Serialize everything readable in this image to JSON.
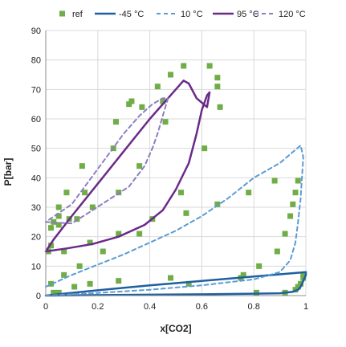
{
  "chart_data": {
    "type": "scatter",
    "xlabel": "x[CO2]",
    "ylabel": "P[bar]",
    "xlim": [
      0,
      1
    ],
    "ylim": [
      0,
      90
    ],
    "x_ticks": [
      "0",
      "0.2",
      "0.4",
      "0.6",
      "0.8",
      "1"
    ],
    "y_ticks": [
      "0",
      "10",
      "20",
      "30",
      "40",
      "50",
      "60",
      "70",
      "80",
      "90"
    ],
    "grid": "horizontal and vertical",
    "legend_position": "top",
    "series": [
      {
        "name": "ref",
        "kind": "markers",
        "color": "#70ad47",
        "points": [
          [
            0.01,
            15
          ],
          [
            0.02,
            17
          ],
          [
            0.02,
            23
          ],
          [
            0.03,
            25
          ],
          [
            0.05,
            27
          ],
          [
            0.05,
            24
          ],
          [
            0.05,
            30
          ],
          [
            0.07,
            15
          ],
          [
            0.08,
            35
          ],
          [
            0.09,
            26
          ],
          [
            0.12,
            26
          ],
          [
            0.14,
            44
          ],
          [
            0.15,
            35
          ],
          [
            0.18,
            30
          ],
          [
            0.26,
            50
          ],
          [
            0.27,
            59
          ],
          [
            0.32,
            65
          ],
          [
            0.33,
            66
          ],
          [
            0.37,
            64
          ],
          [
            0.43,
            71
          ],
          [
            0.45,
            66
          ],
          [
            0.46,
            59
          ],
          [
            0.48,
            75
          ],
          [
            0.53,
            78
          ],
          [
            0.63,
            78
          ],
          [
            0.66,
            74
          ],
          [
            0.66,
            71
          ],
          [
            0.67,
            64
          ],
          [
            0.61,
            50
          ],
          [
            0.36,
            44
          ],
          [
            0.52,
            35
          ],
          [
            0.54,
            28
          ],
          [
            0.41,
            26
          ],
          [
            0.36,
            21
          ],
          [
            0.28,
            21
          ],
          [
            0.28,
            35
          ],
          [
            0.17,
            18
          ],
          [
            0.22,
            15
          ],
          [
            0.66,
            31
          ],
          [
            0.78,
            35
          ],
          [
            0.88,
            39
          ],
          [
            0.97,
            39
          ],
          [
            0.96,
            35
          ],
          [
            0.95,
            31
          ],
          [
            0.94,
            27
          ],
          [
            0.92,
            21
          ],
          [
            0.89,
            15
          ],
          [
            0.82,
            10
          ],
          [
            0.76,
            7
          ],
          [
            0.75,
            6
          ],
          [
            0.99,
            7
          ],
          [
            0.99,
            6
          ],
          [
            0.98,
            4
          ],
          [
            0.97,
            3
          ],
          [
            0.96,
            2
          ],
          [
            0.92,
            1
          ],
          [
            0.81,
            1
          ],
          [
            0.48,
            6
          ],
          [
            0.55,
            4
          ],
          [
            0.28,
            5
          ],
          [
            0.17,
            4
          ],
          [
            0.11,
            3
          ],
          [
            0.13,
            10
          ],
          [
            0.07,
            7
          ],
          [
            0.05,
            1
          ],
          [
            0.03,
            1
          ],
          [
            0.02,
            4
          ]
        ]
      },
      {
        "name": "-45 °C",
        "kind": "solid",
        "color": "#1f5fa0",
        "points": [
          [
            0,
            0
          ],
          [
            0.2,
            0.15
          ],
          [
            0.4,
            0.3
          ],
          [
            0.6,
            0.45
          ],
          [
            0.8,
            0.65
          ],
          [
            0.9,
            0.8
          ],
          [
            0.95,
            1.3
          ],
          [
            0.97,
            2
          ],
          [
            0.98,
            3
          ],
          [
            0.99,
            5
          ],
          [
            1,
            7
          ],
          [
            1,
            8
          ],
          [
            0.8,
            6.5
          ],
          [
            0.6,
            5
          ],
          [
            0.4,
            3.5
          ],
          [
            0.2,
            1.8
          ],
          [
            0.05,
            0.5
          ],
          [
            0,
            0
          ]
        ]
      },
      {
        "name": "10 °C",
        "kind": "dashed",
        "color": "#5b9bd5",
        "points": [
          [
            0,
            0
          ],
          [
            0.2,
            0.9
          ],
          [
            0.4,
            2
          ],
          [
            0.6,
            3.5
          ],
          [
            0.8,
            5.5
          ],
          [
            0.9,
            8
          ],
          [
            0.94,
            12
          ],
          [
            0.96,
            18
          ],
          [
            0.97,
            25
          ],
          [
            0.98,
            33
          ],
          [
            0.985,
            40
          ],
          [
            0.99,
            47
          ],
          [
            0.98,
            51
          ],
          [
            0.9,
            45
          ],
          [
            0.8,
            40
          ],
          [
            0.7,
            33
          ],
          [
            0.6,
            27
          ],
          [
            0.5,
            22
          ],
          [
            0.4,
            18
          ],
          [
            0.3,
            14
          ],
          [
            0.2,
            10.5
          ],
          [
            0.1,
            7
          ],
          [
            0.05,
            5
          ],
          [
            0,
            3
          ]
        ]
      },
      {
        "name": "95 °C",
        "kind": "solid",
        "color": "#6a2a8a",
        "points": [
          [
            0,
            15
          ],
          [
            0.08,
            16
          ],
          [
            0.18,
            17.5
          ],
          [
            0.28,
            20
          ],
          [
            0.38,
            24
          ],
          [
            0.45,
            29
          ],
          [
            0.5,
            36
          ],
          [
            0.55,
            45
          ],
          [
            0.58,
            55
          ],
          [
            0.6,
            63
          ],
          [
            0.62,
            68
          ],
          [
            0.63,
            69
          ],
          [
            0.62,
            64
          ],
          [
            0.58,
            67
          ],
          [
            0.55,
            72
          ],
          [
            0.53,
            73
          ],
          [
            0.48,
            68
          ],
          [
            0.4,
            60
          ],
          [
            0.3,
            49
          ],
          [
            0.2,
            38
          ],
          [
            0.1,
            27
          ],
          [
            0.03,
            19
          ],
          [
            0,
            15
          ]
        ]
      },
      {
        "name": "120 °C",
        "kind": "dashed",
        "color": "#8e7cc3",
        "points": [
          [
            0,
            25
          ],
          [
            0.1,
            24.5
          ],
          [
            0.18,
            29
          ],
          [
            0.25,
            33
          ],
          [
            0.32,
            37
          ],
          [
            0.38,
            44
          ],
          [
            0.41,
            50
          ],
          [
            0.43,
            55
          ],
          [
            0.46,
            64
          ],
          [
            0.47,
            67
          ],
          [
            0.45,
            67
          ],
          [
            0.41,
            65
          ],
          [
            0.36,
            61
          ],
          [
            0.3,
            55
          ],
          [
            0.25,
            49
          ],
          [
            0.2,
            43
          ],
          [
            0.15,
            37
          ],
          [
            0.1,
            31
          ],
          [
            0.05,
            28
          ],
          [
            0,
            25
          ]
        ]
      }
    ]
  }
}
